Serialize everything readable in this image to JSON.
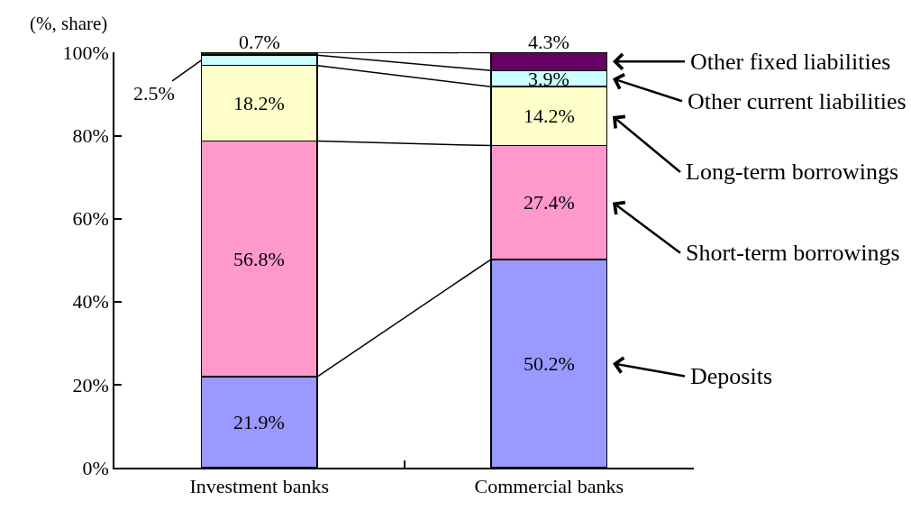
{
  "chart_data": {
    "type": "bar",
    "stacked": true,
    "ylabel": "(%, share)",
    "categories": [
      "Investment banks",
      "Commercial banks"
    ],
    "series": [
      {
        "name": "Deposits",
        "color": "#9999ff",
        "values": [
          21.9,
          50.2
        ],
        "value_labels": [
          "21.9%",
          "50.2%"
        ]
      },
      {
        "name": "Short-term borrowings",
        "color": "#ff99cc",
        "values": [
          56.8,
          27.4
        ],
        "value_labels": [
          "56.8%",
          "27.4%"
        ]
      },
      {
        "name": "Long-term borrowings",
        "color": "#ffffcc",
        "values": [
          18.2,
          14.2
        ],
        "value_labels": [
          "18.2%",
          "14.2%"
        ]
      },
      {
        "name": "Other current liabilities",
        "color": "#ccffff",
        "values": [
          2.5,
          3.9
        ],
        "value_labels": [
          "2.5%",
          "3.9%"
        ]
      },
      {
        "name": "Other fixed liabilities",
        "color": "#660066",
        "values": [
          0.7,
          4.3
        ],
        "value_labels": [
          "0.7%",
          "4.3%"
        ]
      }
    ],
    "ylim": [
      0,
      100.1
    ],
    "yticks": [
      {
        "value": 0,
        "label": "0%"
      },
      {
        "value": 20,
        "label": "20%"
      },
      {
        "value": 40,
        "label": "40%"
      },
      {
        "value": 60,
        "label": "60%"
      },
      {
        "value": 80,
        "label": "80%"
      },
      {
        "value": 100,
        "label": "100%"
      }
    ],
    "grid": false,
    "legend": "right"
  }
}
